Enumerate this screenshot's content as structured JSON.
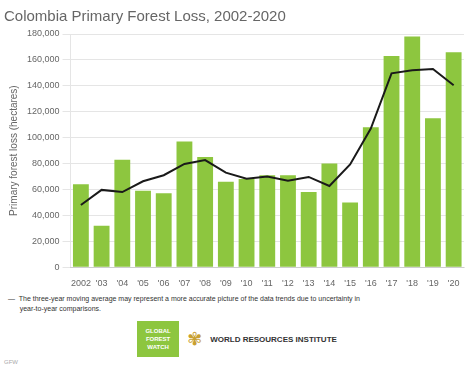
{
  "chart_data": {
    "type": "bar",
    "title": "Colombia Primary Forest Loss, 2002-2020",
    "ylabel": "Primary forest loss (hectares)",
    "categories": [
      "2002",
      "'03",
      "'04",
      "'05",
      "'06",
      "'07",
      "'08",
      "'09",
      "'10",
      "'11",
      "'12",
      "'13",
      "'14",
      "'15",
      "'16",
      "'17",
      "'18",
      "'19",
      "'20"
    ],
    "series": [
      {
        "type": "bar",
        "color": "#8dc63f",
        "values": [
          64000,
          32000,
          83000,
          59000,
          57000,
          97000,
          85000,
          66000,
          68000,
          71000,
          71000,
          58000,
          80000,
          50000,
          108000,
          163000,
          178000,
          115000,
          166000
        ]
      },
      {
        "type": "line",
        "color": "#1a1a1a",
        "values": [
          48000,
          59666.666666666664,
          58000,
          66333.33333333333,
          71000,
          79666.66666666667,
          82666.66666666667,
          73000,
          68333.33333333333,
          70000,
          66666.66666666667,
          69666.66666666667,
          62666.666666666664,
          79333.33333333333,
          107000,
          149666.66666666666,
          152000,
          153000,
          140500
        ]
      }
    ],
    "ylim": [
      0,
      180000
    ],
    "yticks": [
      0,
      {
        "value": 20000,
        "label": "20,000"
      },
      {
        "value": 40000,
        "label": "40,000"
      },
      {
        "value": 60000,
        "label": "60,000"
      },
      {
        "value": 80000,
        "label": "80,000"
      },
      {
        "value": 100000,
        "label": "100,000"
      },
      {
        "value": 120000,
        "label": "120,000"
      },
      {
        "value": 140000,
        "label": "140,000"
      },
      {
        "value": 160000,
        "label": "160,000"
      },
      {
        "value": 180000,
        "label": "180,000"
      }
    ],
    "grid": true,
    "annotations": [
      {
        "text": "—  The three-year moving average may represent a more accurate picture of the data trends due to uncertainty in"
      },
      {
        "text": "      year-to-year comparisons."
      },
      {
        "text": "GLOBAL\nFOREST\nWATCH",
        "color": "#8dc63f"
      },
      {
        "text": "✾",
        "color": "#c8a030"
      },
      {
        "text": "WORLD RESOURCES INSTITUTE"
      },
      {
        "text": "GFW"
      }
    ]
  }
}
